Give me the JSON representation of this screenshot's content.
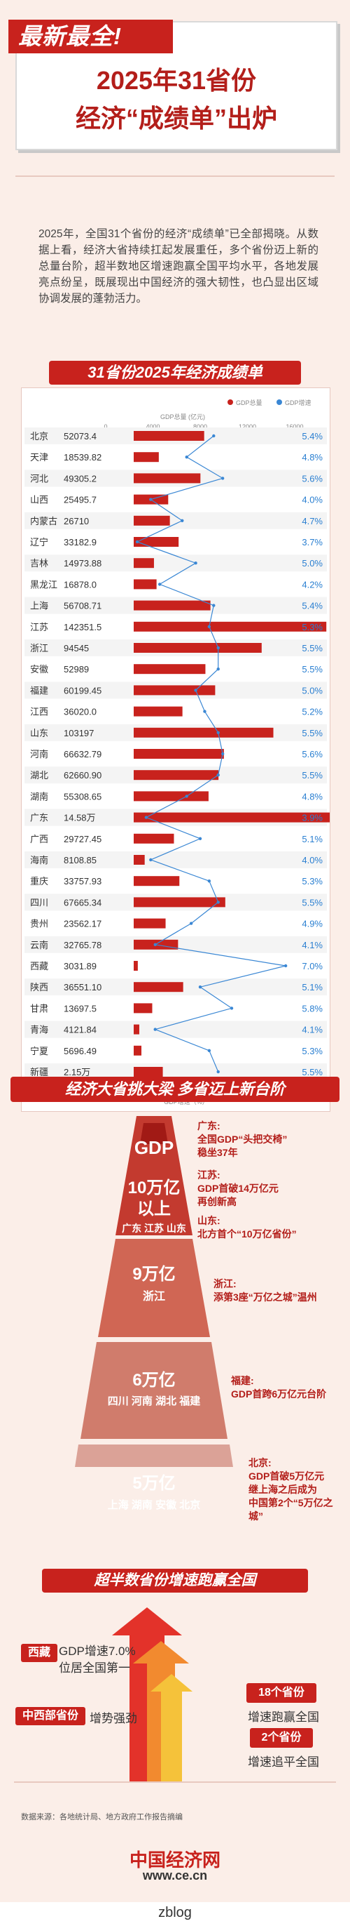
{
  "header": {
    "tag": "最新最全!",
    "title_line1": "2025年31省份",
    "title_line2": "经济“成绩单”出炉"
  },
  "intro": "2025年，全国31个省份的经济“成绩单”已全部揭晓。从数据上看，经济大省持续扛起发展重任，多个省份迈上新的总量台阶，超半数地区增速跑赢全国平均水平，各地发展亮点纷呈，既展现出中国经济的强大韧性，也凸显出区域协调发展的蓬勃活力。",
  "section1_title": "31省份2025年经济成绩单",
  "chart_data": {
    "type": "bar",
    "legend": [
      "GDP总量",
      "GDP增速"
    ],
    "top_axis_label": "GDP总量 (亿元)",
    "bottom_axis_label": "GDP增速（%）",
    "top_ticks": [
      "0",
      "4000",
      "8000",
      "12000",
      "16000"
    ],
    "bottom_ticks": [
      "3",
      "4",
      "5",
      "6",
      "7"
    ],
    "provinces": [
      "北京",
      "天津",
      "河北",
      "山西",
      "内蒙古",
      "辽宁",
      "吉林",
      "黑龙江",
      "上海",
      "江苏",
      "浙江",
      "安徽",
      "福建",
      "江西",
      "山东",
      "河南",
      "湖北",
      "湖南",
      "广东",
      "广西",
      "海南",
      "重庆",
      "四川",
      "贵州",
      "云南",
      "西藏",
      "陕西",
      "甘肃",
      "青海",
      "宁夏",
      "新疆"
    ],
    "gdp_labels": [
      "52073.4",
      "18539.82",
      "49305.2",
      "25495.7",
      "26710",
      "33182.9",
      "14973.88",
      "16878.0",
      "56708.71",
      "142351.5",
      "94545",
      "52989",
      "60199.45",
      "36020.0",
      "103197",
      "66632.79",
      "62660.90",
      "55308.65",
      "14.58万",
      "29727.45",
      "8108.85",
      "33757.93",
      "67665.34",
      "23562.17",
      "32765.78",
      "3031.89",
      "36551.10",
      "13697.5",
      "4121.84",
      "5696.49",
      "2.15万"
    ],
    "gdp_values": [
      52073.4,
      18539.82,
      49305.2,
      25495.7,
      26710,
      33182.9,
      14973.88,
      16878.0,
      56708.71,
      142351.5,
      94545,
      52989,
      60199.45,
      36020.0,
      103197,
      66632.79,
      62660.9,
      55308.65,
      145800,
      29727.45,
      8108.85,
      33757.93,
      67665.34,
      23562.17,
      32765.78,
      3031.89,
      36551.1,
      13697.5,
      4121.84,
      5696.49,
      21500
    ],
    "growth_labels": [
      "5.4%",
      "4.8%",
      "5.6%",
      "4.0%",
      "4.7%",
      "3.7%",
      "5.0%",
      "4.2%",
      "5.4%",
      "5.3%",
      "5.5%",
      "5.5%",
      "5.0%",
      "5.2%",
      "5.5%",
      "5.6%",
      "5.5%",
      "4.8%",
      "3.9%",
      "5.1%",
      "4.0%",
      "5.3%",
      "5.5%",
      "4.9%",
      "4.1%",
      "7.0%",
      "5.1%",
      "5.8%",
      "4.1%",
      "5.3%",
      "5.5%"
    ],
    "growth_values": [
      5.4,
      4.8,
      5.6,
      4.0,
      4.7,
      3.7,
      5.0,
      4.2,
      5.4,
      5.3,
      5.5,
      5.5,
      5.0,
      5.2,
      5.5,
      5.6,
      5.5,
      4.8,
      3.9,
      5.1,
      4.0,
      5.3,
      5.5,
      4.9,
      4.1,
      7.0,
      5.1,
      5.8,
      4.1,
      5.3,
      5.5
    ],
    "colors": {
      "bar": "#c8221d",
      "line": "#3a87d4",
      "growth_text": "#2a7fd1"
    }
  },
  "section2_title": "经济大省挑大梁 多省迈上新台阶",
  "pyramid": {
    "top": "GDP",
    "tiers": [
      {
        "amount": "10万亿\n以上",
        "amount_l1": "10万亿",
        "amount_l2": "以上",
        "provinces": "广东  江苏  山东"
      },
      {
        "amount_l1": "9万亿",
        "provinces": "浙江"
      },
      {
        "amount_l1": "6万亿",
        "provinces": "四川   河南   湖北   福建"
      },
      {
        "amount_l1": "5万亿",
        "provinces": "上海   湖南   安徽   北京"
      }
    ]
  },
  "notes": [
    {
      "head": "广东:",
      "body1": "全国GDP“头把交椅”",
      "body2": "稳坐37年"
    },
    {
      "head": "江苏:",
      "body1": "GDP首破14万亿元",
      "body2": "再创新高"
    },
    {
      "head": "山东:",
      "body1": "北方首个“10万亿省份”",
      "body2": ""
    },
    {
      "head": "浙江:",
      "body1": "添第3座“万亿之城”温州",
      "body2": ""
    },
    {
      "head": "福建:",
      "body1": "GDP首跨6万亿元台阶",
      "body2": ""
    },
    {
      "head": "北京:",
      "body1": "GDP首破5万亿元",
      "body2": "继上海之后成为",
      "body3": "中国第2个“5万亿之城”"
    }
  ],
  "section3_title": "超半数省份增速跑赢全国",
  "growth_notes": {
    "xizang_badge": "西藏",
    "xizang_text1": "GDP增速7.0%",
    "xizang_text2": "位居全国第一",
    "central_badge": "中西部省份",
    "central_text": "增势强劲",
    "stat1_badge": "18个省份",
    "stat1_text": "增速跑赢全国",
    "stat2_badge": "2个省份",
    "stat2_text": "增速追平全国"
  },
  "source": "数据来源：各地统计局、地方政府工作报告摘编",
  "logo_line1": "中国经济网",
  "logo_line2": "www.ce.cn",
  "watermark": "zblog"
}
